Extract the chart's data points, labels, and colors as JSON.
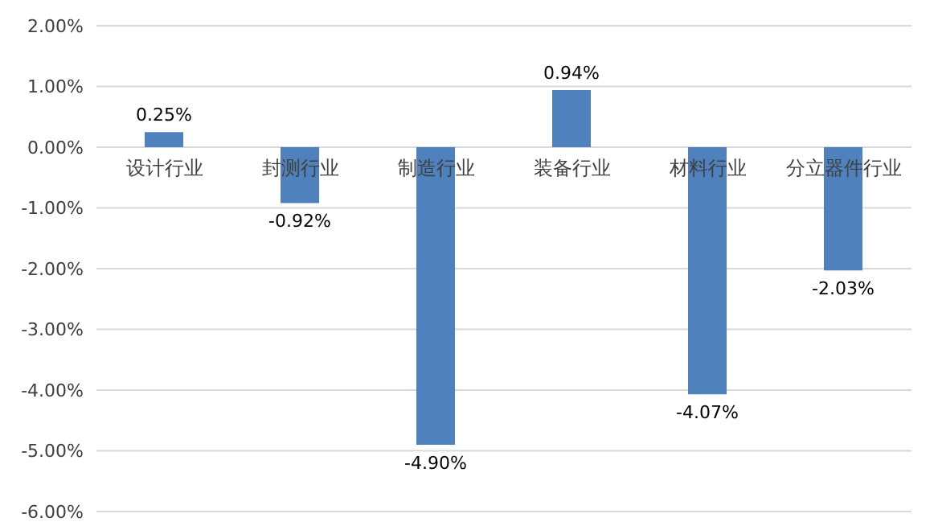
{
  "chart_data": {
    "type": "bar",
    "categories": [
      "设计行业",
      "封测行业",
      "制造行业",
      "装备行业",
      "材料行业",
      "分立器件行业"
    ],
    "values": [
      0.25,
      -0.92,
      -4.9,
      0.94,
      -4.07,
      -2.03
    ],
    "value_labels": [
      "0.25%",
      "-0.92%",
      "-4.90%",
      "0.94%",
      "-4.07%",
      "-2.03%"
    ],
    "color": "#4f81bd",
    "ylim": [
      -6,
      2
    ],
    "yticks": [
      {
        "value": -6,
        "label": "-6.00%"
      },
      {
        "value": -5,
        "label": "-5.00%"
      },
      {
        "value": -4,
        "label": "-4.00%"
      },
      {
        "value": -3,
        "label": "-3.00%"
      },
      {
        "value": -2,
        "label": "-2.00%"
      },
      {
        "value": -1,
        "label": "-1.00%"
      },
      {
        "value": 0,
        "label": "0.00%"
      },
      {
        "value": 1,
        "label": "1.00%"
      },
      {
        "value": 2,
        "label": "2.00%"
      }
    ],
    "grid": "y",
    "legend": false
  }
}
